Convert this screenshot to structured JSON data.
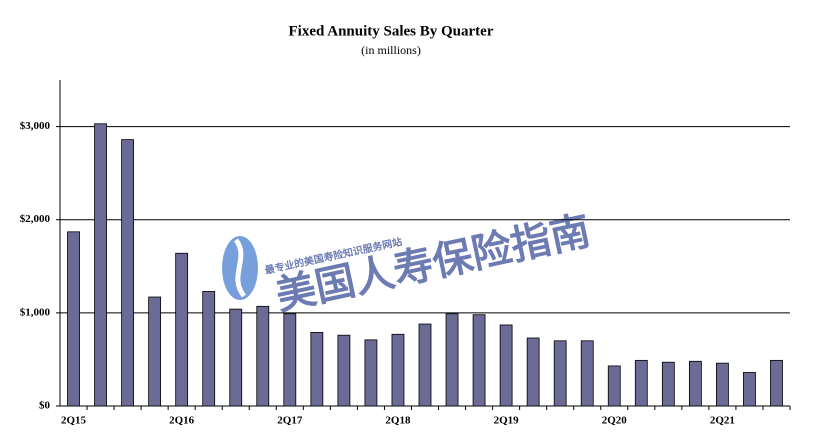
{
  "chart_data": {
    "type": "bar",
    "title": "Fixed Annuity Sales By Quarter",
    "subtitle": "(in millions)",
    "categories": [
      "2Q15",
      null,
      null,
      null,
      "2Q16",
      null,
      null,
      null,
      "2Q17",
      null,
      null,
      null,
      "2Q18",
      null,
      null,
      null,
      "2Q19",
      null,
      null,
      null,
      "2Q20",
      null,
      null,
      null,
      "2Q21",
      null,
      null
    ],
    "values": [
      1870,
      3030,
      2860,
      1170,
      1640,
      1230,
      1040,
      1070,
      990,
      790,
      760,
      710,
      770,
      880,
      990,
      980,
      870,
      730,
      700,
      700,
      430,
      490,
      470,
      480,
      460,
      360,
      490
    ],
    "color": "#6b6b96",
    "ylim": [
      0,
      3500
    ],
    "yticks": [
      {
        "value": 0,
        "label": "$0"
      },
      {
        "value": 1000,
        "label": "$1,000"
      },
      {
        "value": 2000,
        "label": "$2,000"
      },
      {
        "value": 3000,
        "label": "$3,000"
      }
    ],
    "grid": true,
    "watermark": {
      "title": "美国人寿保险指南",
      "tagline": "最专业的美国寿险知识服务网站"
    }
  }
}
